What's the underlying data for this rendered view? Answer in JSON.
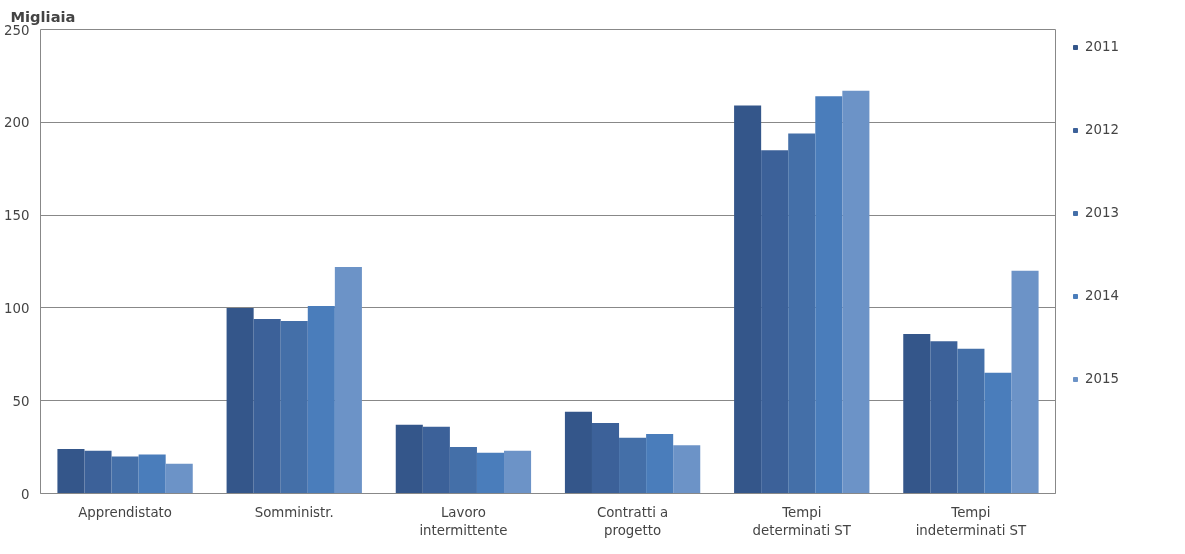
{
  "chart_data": {
    "type": "bar",
    "ylabel": "Migliaia",
    "categories": [
      "Apprendistato",
      "Somministr.",
      "Lavoro intermittente",
      "Contratti a progetto",
      "Tempi determinati ST",
      "Tempi indeterminati ST"
    ],
    "series": [
      {
        "name": "2011",
        "color": "#34568a",
        "values": [
          24,
          100,
          37,
          44,
          209,
          86
        ]
      },
      {
        "name": "2012",
        "color": "#3c6199",
        "values": [
          23,
          94,
          36,
          38,
          185,
          82
        ]
      },
      {
        "name": "2013",
        "color": "#446fa8",
        "values": [
          20,
          93,
          25,
          30,
          194,
          78
        ]
      },
      {
        "name": "2014",
        "color": "#4a7dbb",
        "values": [
          21,
          101,
          22,
          32,
          214,
          65
        ]
      },
      {
        "name": "2015",
        "color": "#6c93c7",
        "values": [
          16,
          122,
          23,
          26,
          217,
          120
        ]
      }
    ],
    "ylim": [
      0,
      250
    ],
    "yticks": [
      0,
      50,
      100,
      150,
      200,
      250
    ],
    "grid": "y",
    "legend": "right"
  }
}
